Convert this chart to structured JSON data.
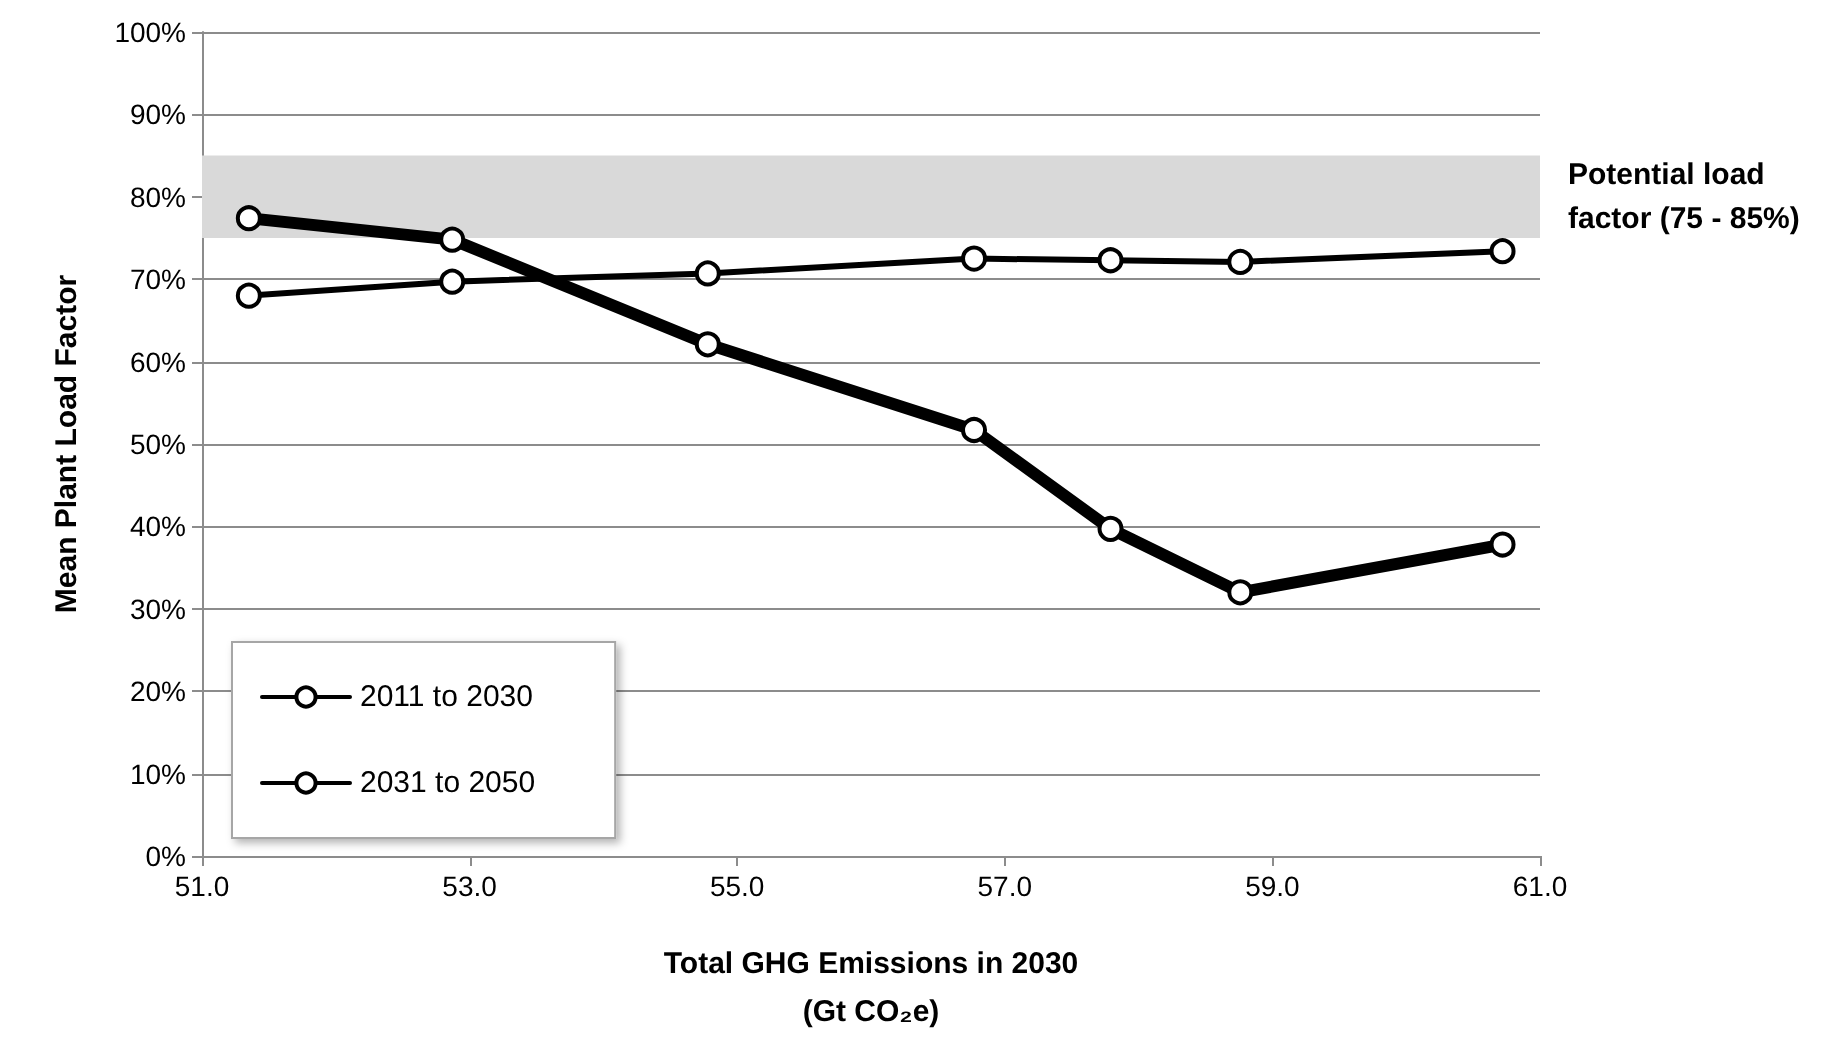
{
  "chart_data": {
    "type": "line",
    "xlabel": "Total GHG Emissions in 2030\n(Gt CO₂e)",
    "ylabel": "Mean Plant Load Factor",
    "xlim": [
      51,
      61
    ],
    "xticks": [
      {
        "value": 51,
        "label": "51.0"
      },
      {
        "value": 53,
        "label": "53.0"
      },
      {
        "value": 55,
        "label": "55.0"
      },
      {
        "value": 57,
        "label": "57.0"
      },
      {
        "value": 59,
        "label": "59.0"
      },
      {
        "value": 61,
        "label": "61.0"
      }
    ],
    "ylim": [
      0,
      100
    ],
    "yticks": [
      {
        "value": 0,
        "label": "0%"
      },
      {
        "value": 10,
        "label": "10%"
      },
      {
        "value": 20,
        "label": "20%"
      },
      {
        "value": 30,
        "label": "30%"
      },
      {
        "value": 40,
        "label": "40%"
      },
      {
        "value": 50,
        "label": "50%"
      },
      {
        "value": 60,
        "label": "60%"
      },
      {
        "value": 70,
        "label": "70%"
      },
      {
        "value": 80,
        "label": "80%"
      },
      {
        "value": 90,
        "label": "90%"
      },
      {
        "value": 100,
        "label": "100%"
      }
    ],
    "x": [
      51.35,
      52.87,
      54.78,
      56.77,
      57.79,
      58.76,
      60.72
    ],
    "series": [
      {
        "name": "2011 to 2030",
        "color": "#000000",
        "values": [
          68.0,
          69.7,
          70.7,
          72.5,
          72.3,
          72.1,
          73.4
        ]
      },
      {
        "name": "2031 to 2050",
        "color": "#000000",
        "values": [
          77.4,
          74.8,
          62.1,
          51.7,
          39.7,
          32.0,
          37.8
        ]
      }
    ],
    "bands": [
      {
        "axis": "y",
        "from": 75,
        "to": 85,
        "label": "Potential load factor (75 - 85%)",
        "color": "#d9d9d9"
      }
    ],
    "grid": "y",
    "legend": "bottom left",
    "marker": "circle",
    "line_style": "solid"
  }
}
